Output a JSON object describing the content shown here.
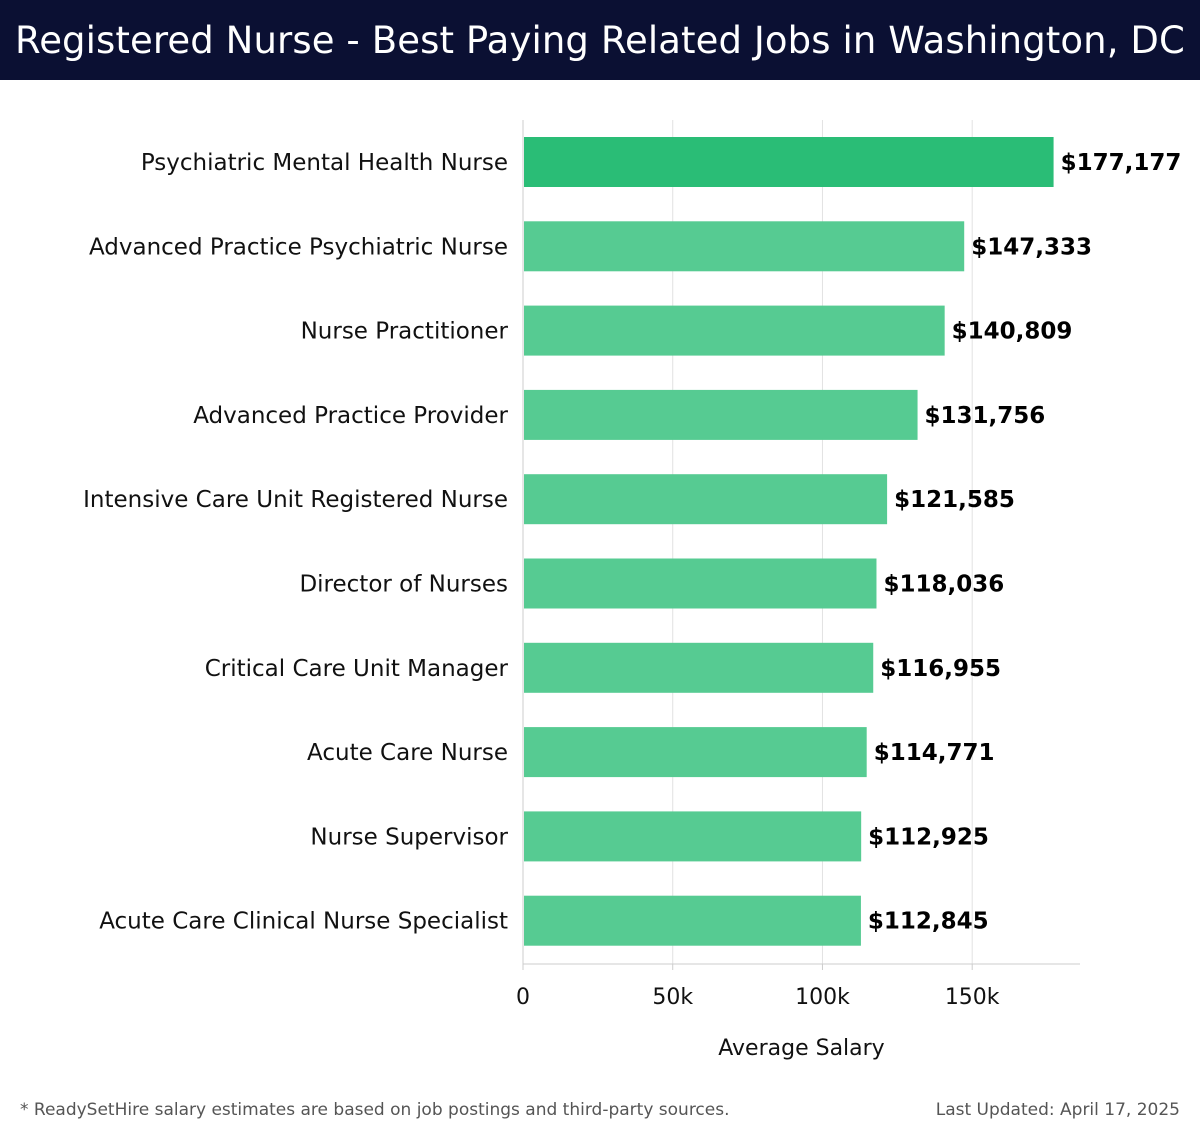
{
  "header": {
    "title": "Registered Nurse - Best Paying Related Jobs in Washington, DC"
  },
  "chart_data": {
    "type": "bar",
    "orientation": "horizontal",
    "categories": [
      "Psychiatric Mental Health Nurse",
      "Advanced Practice Psychiatric Nurse",
      "Nurse Practitioner",
      "Advanced Practice Provider",
      "Intensive Care Unit Registered Nurse",
      "Director of Nurses",
      "Critical Care Unit Manager",
      "Acute Care Nurse",
      "Nurse Supervisor",
      "Acute Care Clinical Nurse Specialist"
    ],
    "values": [
      177177,
      147333,
      140809,
      131756,
      121585,
      118036,
      116955,
      114771,
      112925,
      112845
    ],
    "value_labels": [
      "$177,177",
      "$147,333",
      "$140,809",
      "$131,756",
      "$121,585",
      "$118,036",
      "$116,955",
      "$114,771",
      "$112,925",
      "$112,845"
    ],
    "xlabel": "Average Salary",
    "ylabel": "",
    "xlim": [
      0,
      186000
    ],
    "x_ticks": [
      0,
      50000,
      100000,
      150000
    ],
    "x_tick_labels": [
      "0",
      "50k",
      "100k",
      "150k"
    ],
    "grid": "vertical",
    "colors": {
      "highlight_bar": "#2abd76",
      "bar": "#56cb92",
      "grid": "#e2e2e2",
      "axis": "#cccccc"
    }
  },
  "footer": {
    "note": "* ReadySetHire salary estimates are based on job postings and third-party sources.",
    "updated": "Last Updated: April 17, 2025"
  }
}
